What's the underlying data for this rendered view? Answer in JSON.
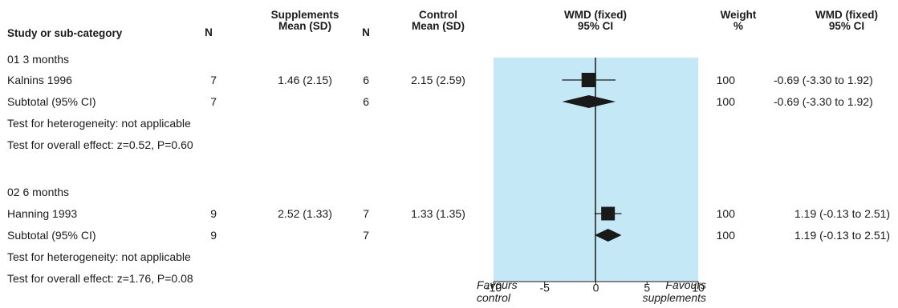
{
  "header": {
    "study": "Study or sub-category",
    "n1": "N",
    "supp_line1": "Supplements",
    "supp_line2": "Mean (SD)",
    "n2": "N",
    "ctrl_line1": "Control",
    "ctrl_line2": "Mean (SD)",
    "wmd_line1": "WMD (fixed)",
    "wmd_line2": "95% CI",
    "weight_line1": "Weight",
    "weight_line2": "%",
    "wmd2_line1": "WMD (fixed)",
    "wmd2_line2": "95% CI"
  },
  "groups": [
    {
      "title": "01 3 months",
      "study": {
        "name": "Kalnins 1996",
        "n1": "7",
        "supp": "1.46 (2.15)",
        "n2": "6",
        "ctrl": "2.15 (2.59)",
        "weight": "100",
        "ci": "-0.69 (-3.30 to 1.92)"
      },
      "subtotal": {
        "name": "Subtotal (95% CI)",
        "n1": "7",
        "n2": "6",
        "weight": "100",
        "ci": "-0.69 (-3.30 to 1.92)"
      },
      "heterogeneity": "Test for heterogeneity: not applicable",
      "overall": "Test for overall effect: z=0.52, P=0.60"
    },
    {
      "title": "02 6 months",
      "study": {
        "name": "Hanning 1993",
        "n1": "9",
        "supp": "2.52 (1.33)",
        "n2": "7",
        "ctrl": "1.33 (1.35)",
        "weight": "100",
        "ci": "1.19 (-0.13 to 2.51)"
      },
      "subtotal": {
        "name": "Subtotal (95% CI)",
        "n1": "9",
        "n2": "7",
        "weight": "100",
        "ci": "1.19 (-0.13 to 2.51)"
      },
      "heterogeneity": "Test for heterogeneity: not applicable",
      "overall": "Test for overall effect: z=1.76, P=0.08"
    }
  ],
  "axis": {
    "favours_left_line1": "Favours",
    "favours_left_line2": "control",
    "favours_right_line1": "Favours",
    "favours_right_line2": "supplements"
  },
  "colors": {
    "panel": "#c5e8f7",
    "ink": "#1a1a1a"
  },
  "chart_data": {
    "type": "forest",
    "xlim": [
      -10,
      10
    ],
    "xticks": [
      -10,
      -5,
      0,
      5,
      10
    ],
    "reference_line": 0,
    "studies": [
      {
        "name": "Kalnins 1996",
        "estimate": -0.69,
        "ci": [
          -3.3,
          1.92
        ],
        "weight": 100
      },
      {
        "name": "Hanning 1993",
        "estimate": 1.19,
        "ci": [
          -0.13,
          2.51
        ],
        "weight": 100
      }
    ],
    "subtotals": [
      {
        "name": "Subtotal (95% CI)",
        "group": "01 3 months",
        "estimate": -0.69,
        "ci": [
          -3.3,
          1.92
        ]
      },
      {
        "name": "Subtotal (95% CI)",
        "group": "02 6 months",
        "estimate": 1.19,
        "ci": [
          -0.13,
          2.51
        ]
      }
    ]
  }
}
